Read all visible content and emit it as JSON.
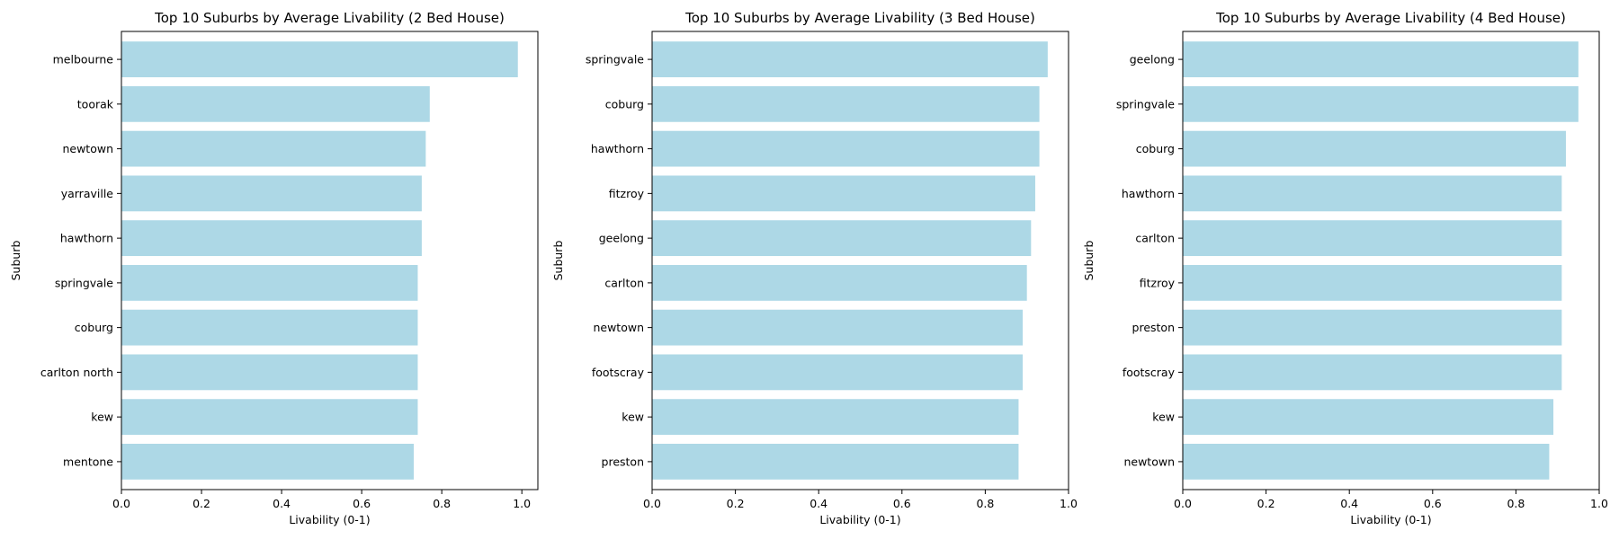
{
  "colors": {
    "bar": "#add8e6",
    "axis": "#000000",
    "background": "#ffffff"
  },
  "chart_data": [
    {
      "type": "bar",
      "orientation": "horizontal",
      "title": "Top 10 Suburbs by Average Livability (2 Bed House)",
      "xlabel": "Livability (0-1)",
      "ylabel": "Suburb",
      "xlim": [
        0,
        1.04
      ],
      "xticks": [
        "0.0",
        "0.2",
        "0.4",
        "0.6",
        "0.8",
        "1.0"
      ],
      "grid": false,
      "categories": [
        "melbourne",
        "toorak",
        "newtown",
        "yarraville",
        "hawthorn",
        "springvale",
        "coburg",
        "carlton north",
        "kew",
        "mentone"
      ],
      "values": [
        0.99,
        0.77,
        0.76,
        0.75,
        0.75,
        0.74,
        0.74,
        0.74,
        0.74,
        0.73
      ]
    },
    {
      "type": "bar",
      "orientation": "horizontal",
      "title": "Top 10 Suburbs by Average Livability (3 Bed House)",
      "xlabel": "Livability (0-1)",
      "ylabel": "Suburb",
      "xlim": [
        0,
        1.0
      ],
      "xticks": [
        "0.0",
        "0.2",
        "0.4",
        "0.6",
        "0.8",
        "1.0"
      ],
      "grid": false,
      "categories": [
        "springvale",
        "coburg",
        "hawthorn",
        "fitzroy",
        "geelong",
        "carlton",
        "newtown",
        "footscray",
        "kew",
        "preston"
      ],
      "values": [
        0.95,
        0.93,
        0.93,
        0.92,
        0.91,
        0.9,
        0.89,
        0.89,
        0.88,
        0.88
      ]
    },
    {
      "type": "bar",
      "orientation": "horizontal",
      "title": "Top 10 Suburbs by Average Livability (4 Bed House)",
      "xlabel": "Livability (0-1)",
      "ylabel": "Suburb",
      "xlim": [
        0,
        1.0
      ],
      "xticks": [
        "0.0",
        "0.2",
        "0.4",
        "0.6",
        "0.8",
        "1.0"
      ],
      "grid": false,
      "categories": [
        "geelong",
        "springvale",
        "coburg",
        "hawthorn",
        "carlton",
        "fitzroy",
        "preston",
        "footscray",
        "kew",
        "newtown"
      ],
      "values": [
        0.95,
        0.95,
        0.92,
        0.91,
        0.91,
        0.91,
        0.91,
        0.91,
        0.89,
        0.88
      ]
    }
  ]
}
